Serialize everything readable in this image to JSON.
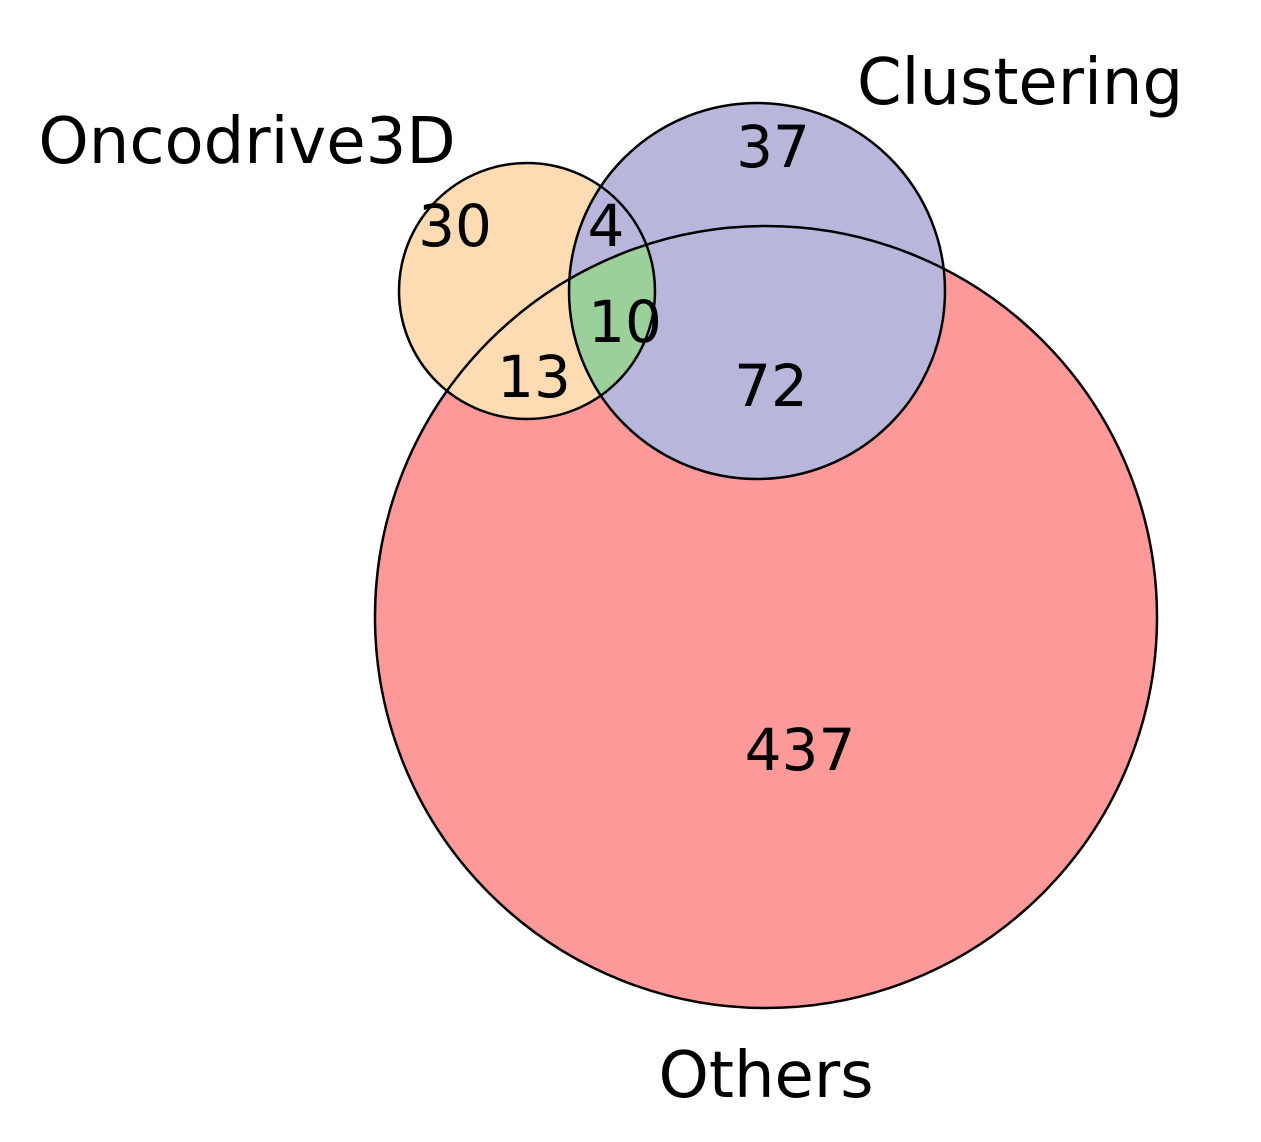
{
  "sets": {
    "oncodrive3d": {
      "label": "Oncodrive3D",
      "color": "#fddcb3"
    },
    "clustering": {
      "label": "Clustering",
      "color": "#b9b6dc"
    },
    "others": {
      "label": "Others",
      "color": "#fe9999"
    }
  },
  "regions": {
    "oncodrive3d_only": {
      "count": "30"
    },
    "clustering_only": {
      "count": "37"
    },
    "others_only": {
      "count": "437"
    },
    "oncodrive3d_clustering": {
      "count": "4"
    },
    "oncodrive3d_others": {
      "count": "13"
    },
    "clustering_others": {
      "count": "72"
    },
    "all_three": {
      "count": "10",
      "color": "#9bd09b"
    }
  }
}
